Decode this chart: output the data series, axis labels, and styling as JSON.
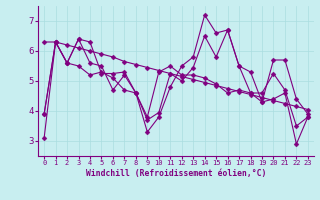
{
  "xlabel": "Windchill (Refroidissement éolien,°C)",
  "background_color": "#c8eef0",
  "line_color": "#800080",
  "marker": "D",
  "markersize": 2.5,
  "xlim": [
    -0.5,
    23.5
  ],
  "ylim": [
    2.5,
    7.5
  ],
  "yticks": [
    3,
    4,
    5,
    6,
    7
  ],
  "xticks": [
    0,
    1,
    2,
    3,
    4,
    5,
    6,
    7,
    8,
    9,
    10,
    11,
    12,
    13,
    14,
    15,
    16,
    17,
    18,
    19,
    20,
    21,
    22,
    23
  ],
  "grid_color": "#aadde0",
  "lines": [
    [
      3.1,
      6.3,
      5.6,
      5.5,
      5.2,
      5.3,
      5.1,
      4.7,
      4.6,
      3.8,
      5.3,
      5.5,
      5.2,
      5.2,
      5.1,
      4.9,
      4.6,
      4.7,
      4.6,
      4.3,
      4.4,
      4.6,
      2.9,
      3.8
    ],
    [
      3.9,
      6.3,
      5.6,
      6.4,
      6.3,
      5.25,
      5.25,
      5.3,
      4.6,
      3.3,
      3.8,
      4.8,
      5.5,
      5.8,
      7.2,
      6.6,
      6.7,
      5.5,
      5.3,
      4.3,
      5.7,
      5.7,
      4.4,
      3.9
    ],
    [
      3.9,
      6.3,
      5.6,
      6.4,
      5.6,
      5.5,
      4.7,
      5.2,
      4.6,
      3.7,
      3.95,
      5.25,
      5.0,
      5.45,
      6.5,
      5.8,
      6.7,
      5.5,
      4.6,
      4.6,
      5.25,
      4.7,
      3.5,
      3.8
    ],
    [
      6.3,
      6.3,
      6.2,
      6.1,
      6.0,
      5.9,
      5.8,
      5.65,
      5.55,
      5.45,
      5.35,
      5.25,
      5.15,
      5.05,
      4.95,
      4.85,
      4.75,
      4.65,
      4.55,
      4.45,
      4.35,
      4.25,
      4.15,
      4.05
    ]
  ]
}
